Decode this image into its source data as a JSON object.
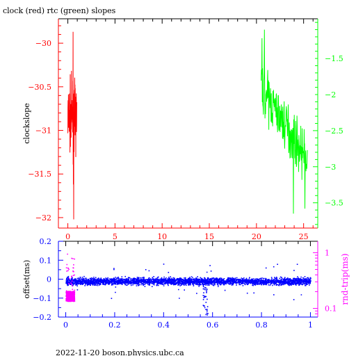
{
  "title": "clock (red) rtc (green) slopes",
  "footer": "2022-11-20  boson.physics.ubc.ca",
  "colors": {
    "red": "#ff0000",
    "green": "#00ff00",
    "blue": "#0000ff",
    "magenta": "#ff00ff",
    "black": "#000000"
  },
  "chart_data": [
    {
      "type": "line",
      "title": "clock (red) rtc (green) slopes",
      "ylabel": "clockslope",
      "xlim": [
        -1,
        26.5
      ],
      "x_ticks": [
        0,
        5,
        10,
        15,
        20,
        25
      ],
      "y_left_lim": [
        -32.12,
        -29.72
      ],
      "y_left_ticks": [
        -30,
        -30.5,
        -31,
        -31.5,
        -32
      ],
      "y_right_lim": [
        -3.85,
        -0.95
      ],
      "y_right_ticks": [
        -1.5,
        -2,
        -2.5,
        -3,
        -3.5
      ],
      "grid": false,
      "series": [
        {
          "name": "clock",
          "color": "#ff0000",
          "axis": "left",
          "x_range": [
            0,
            0.95
          ],
          "y_center": -30.85,
          "y_spread": 0.35,
          "y_min": -32.02,
          "y_max": -29.87
        },
        {
          "name": "rtc",
          "color": "#00ff00",
          "axis": "right",
          "x_range": [
            20.5,
            25.4
          ],
          "y_start": -1.9,
          "y_end": -2.9,
          "y_spread": 0.35,
          "y_min": -3.65,
          "y_max": -1.1
        }
      ]
    },
    {
      "type": "scatter",
      "ylabel_left": "offset(ms)",
      "ylabel_right": "rnd-trip(ms)",
      "xlim": [
        -0.03,
        1.03
      ],
      "x_ticks": [
        0,
        0.2,
        0.4,
        0.6,
        0.8,
        1
      ],
      "y_left_lim": [
        -0.2,
        0.2
      ],
      "y_left_ticks": [
        0.2,
        0.1,
        0,
        -0.1,
        -0.2
      ],
      "y_right_scale": "log",
      "y_right_lim": [
        0.07,
        1.6
      ],
      "y_right_ticks": [
        1,
        0.1
      ],
      "series": [
        {
          "name": "offset",
          "color": "#0000ff",
          "axis": "left",
          "x_range": [
            0,
            1
          ],
          "y_center": -0.01,
          "y_spread": 0.02,
          "dip_x": 0.57,
          "dip_y_min": -0.18
        },
        {
          "name": "rnd-trip",
          "color": "#ff00ff",
          "axis": "right",
          "x_range": [
            0,
            0.035
          ],
          "y_range": [
            0.13,
            1.2
          ]
        }
      ]
    }
  ]
}
